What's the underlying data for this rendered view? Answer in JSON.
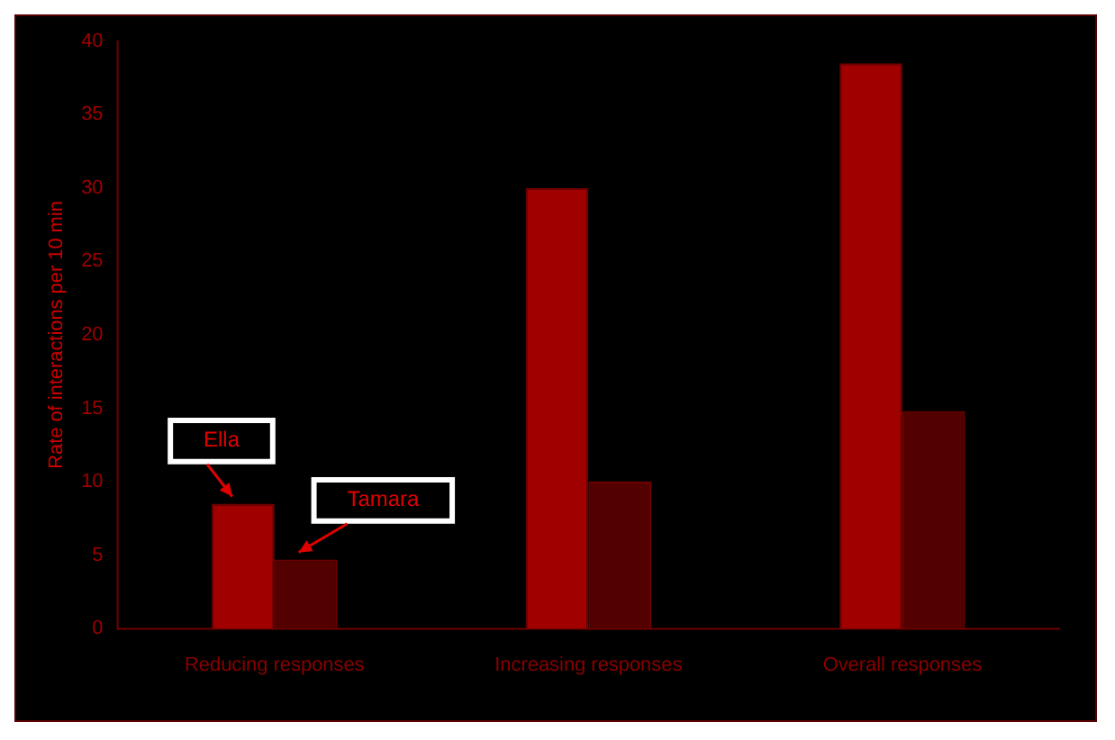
{
  "chart_data": {
    "type": "bar",
    "ylabel": "Rate of interactions per 10 min",
    "categories": [
      "Reducing responses",
      "Increasing responses",
      "Overall responses"
    ],
    "series": [
      {
        "name": "Ella",
        "color": "#a00000",
        "values": [
          8.5,
          30,
          38.5
        ]
      },
      {
        "name": "Tamara",
        "color": "#520000",
        "values": [
          4.7,
          10,
          14.8
        ]
      }
    ],
    "ylim": [
      0,
      40
    ],
    "yticks": [
      0,
      5,
      10,
      15,
      20,
      25,
      30,
      35,
      40
    ],
    "grid": false,
    "legend": false
  }
}
